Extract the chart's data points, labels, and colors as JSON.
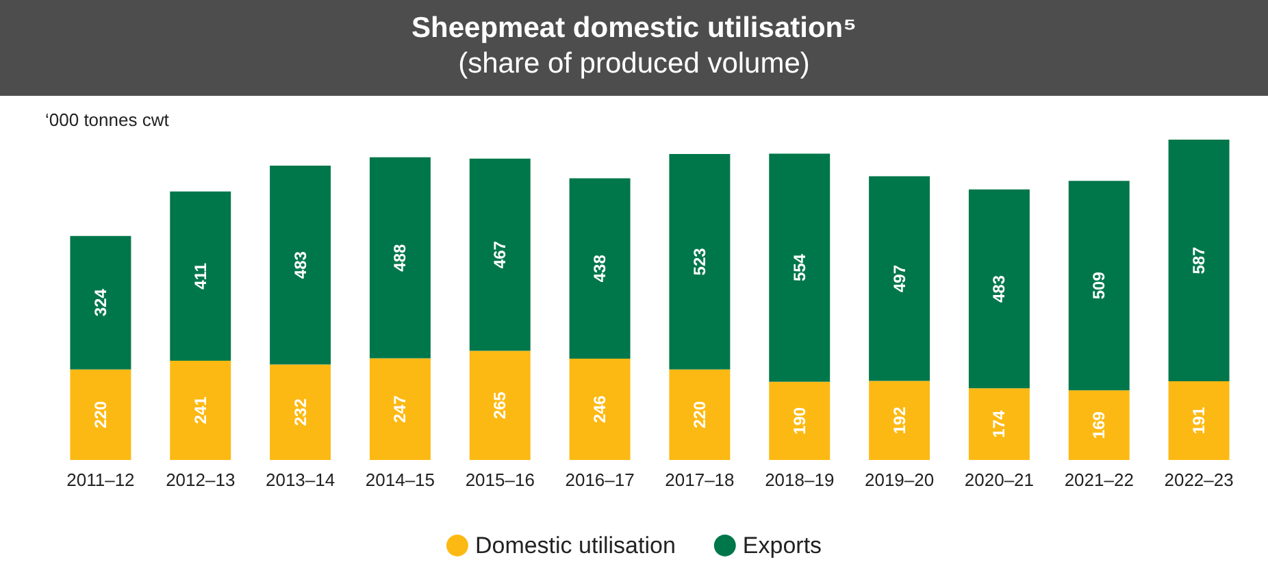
{
  "chart_data": {
    "type": "bar",
    "title": "Sheepmeat domestic utilisation⁵",
    "subtitle": "(share of produced volume)",
    "ylabel": "‘000 tonnes cwt",
    "categories": [
      "2011–12",
      "2012–13",
      "2013–14",
      "2014–15",
      "2015–16",
      "2016–17",
      "2017–18",
      "2018–19",
      "2019–20",
      "2020–21",
      "2021–22",
      "2022–23"
    ],
    "stacked": true,
    "data_labels": true,
    "legend": "bottom",
    "grid": false,
    "series": [
      {
        "name": "Domestic utilisation",
        "color": "#fdb913",
        "values": [
          220,
          241,
          232,
          247,
          265,
          246,
          220,
          190,
          192,
          174,
          169,
          191
        ]
      },
      {
        "name": "Exports",
        "color": "#00774a",
        "values": [
          324,
          411,
          483,
          488,
          467,
          438,
          523,
          554,
          497,
          483,
          509,
          587
        ]
      }
    ]
  }
}
